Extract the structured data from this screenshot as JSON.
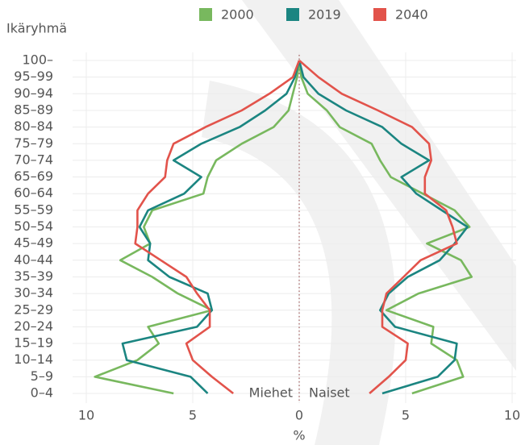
{
  "chart_data": {
    "type": "pyramid-line",
    "y_axis_label": "Ikäryhmä",
    "x_axis_label": "%",
    "left_label": "Miehet",
    "right_label": "Naiset",
    "categories": [
      "0–4",
      "5–9",
      "10–14",
      "15–19",
      "20–24",
      "25–29",
      "30–34",
      "35–39",
      "40–44",
      "45–49",
      "50–54",
      "55–59",
      "60–64",
      "65–69",
      "70–74",
      "75–79",
      "80–84",
      "85–89",
      "90–94",
      "95–99",
      "100–"
    ],
    "xlim": [
      -10,
      10
    ],
    "xticks": [
      {
        "value": -10,
        "label": "10"
      },
      {
        "value": -5,
        "label": "5"
      },
      0,
      5,
      10
    ],
    "grid": true,
    "series": [
      {
        "name": "2000",
        "color": "#78b85e",
        "men": [
          5.9,
          9.6,
          7.6,
          6.6,
          7.1,
          4.1,
          5.7,
          6.9,
          8.4,
          7.0,
          7.3,
          6.9,
          4.5,
          4.3,
          3.9,
          2.7,
          1.2,
          0.5,
          0.3,
          0.1,
          0.0
        ],
        "women": [
          5.3,
          7.7,
          7.4,
          6.2,
          6.3,
          4.1,
          5.6,
          8.1,
          7.6,
          6.0,
          8.0,
          7.3,
          5.8,
          4.3,
          3.8,
          3.4,
          1.9,
          1.3,
          0.4,
          0.1,
          0.0
        ]
      },
      {
        "name": "2019",
        "color": "#1b8581",
        "men": [
          4.3,
          5.1,
          8.1,
          8.3,
          4.8,
          4.1,
          4.3,
          6.1,
          7.1,
          7.0,
          7.5,
          7.1,
          5.4,
          4.6,
          5.9,
          4.6,
          2.8,
          1.6,
          0.6,
          0.2,
          0.0
        ],
        "women": [
          3.9,
          6.5,
          7.3,
          7.4,
          4.5,
          3.8,
          4.2,
          5.1,
          6.6,
          7.3,
          7.9,
          6.7,
          5.5,
          4.8,
          6.1,
          4.8,
          3.9,
          2.2,
          0.9,
          0.2,
          0.0
        ]
      },
      {
        "name": "2040",
        "color": "#e2534b",
        "men": [
          3.1,
          4.1,
          5.0,
          5.3,
          4.2,
          4.2,
          4.8,
          5.3,
          6.5,
          7.7,
          7.6,
          7.6,
          7.1,
          6.3,
          6.2,
          5.9,
          4.4,
          2.7,
          1.4,
          0.3,
          0.0
        ],
        "women": [
          3.3,
          4.2,
          5.0,
          5.1,
          3.9,
          3.9,
          4.1,
          4.9,
          5.7,
          7.4,
          7.2,
          6.9,
          5.9,
          5.9,
          6.2,
          6.1,
          5.3,
          3.7,
          2.0,
          0.9,
          0.0
        ]
      }
    ]
  }
}
